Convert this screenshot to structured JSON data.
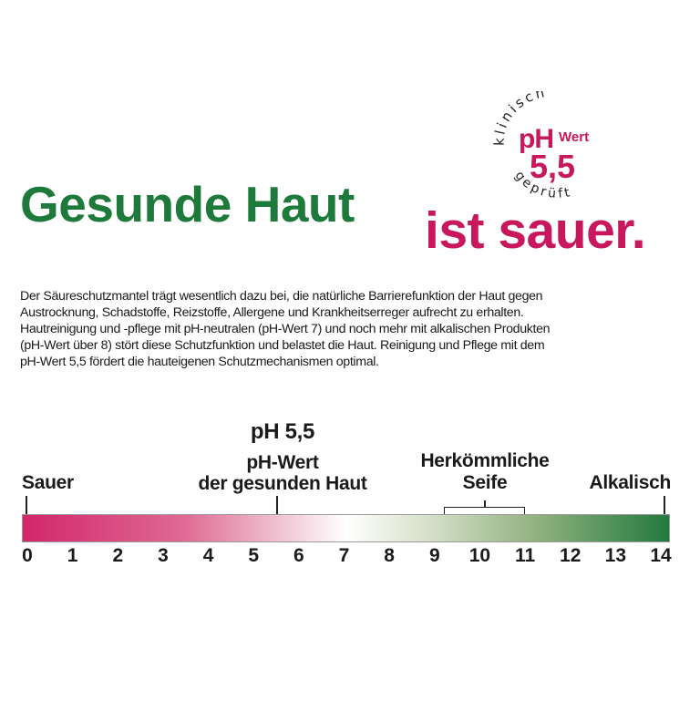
{
  "badge": {
    "top_arc": "klinisch",
    "ph": "pH",
    "wert": "Wert",
    "value": "5,5",
    "bottom_arc": "geprüft",
    "color": "#c8175c"
  },
  "headline": {
    "part1": "Gesunde Haut",
    "part2": "ist sauer.",
    "color1": "#1e7a3a",
    "color2": "#c8175c"
  },
  "body_lines": [
    "Der Säureschutzmantel trägt wesentlich dazu bei, die natürliche Barrierefunktion der Haut gegen",
    "Austrocknung, Schadstoffe, Reizstoffe, Allergene und Krankheitserreger aufrecht zu erhalten.",
    "Hautreinigung und -pflege mit pH-neutralen (pH-Wert 7) und noch mehr mit alkalischen Produkten",
    "(pH-Wert über 8) stört diese Schutzfunktion und belastet die Haut. Reinigung und Pflege mit dem",
    "pH-Wert 5,5 fördert die hauteigenen Schutzmechanismen optimal."
  ],
  "scale": {
    "min": 0,
    "max": 14,
    "ticks": [
      "0",
      "1",
      "2",
      "3",
      "4",
      "5",
      "6",
      "7",
      "8",
      "9",
      "10",
      "11",
      "12",
      "13",
      "14"
    ],
    "left_label": "Sauer",
    "right_label": "Alkalisch",
    "marker": {
      "value": 5.5,
      "title": "pH 5,5",
      "line1": "pH-Wert",
      "line2": "der gesunden Haut"
    },
    "range": {
      "from": 9.2,
      "to": 11,
      "line1": "Herkömmliche",
      "line2": "Seife"
    },
    "colors": {
      "acid": "#d2266a",
      "neutral": "#ffffff",
      "alkaline": "#217a3e"
    }
  }
}
